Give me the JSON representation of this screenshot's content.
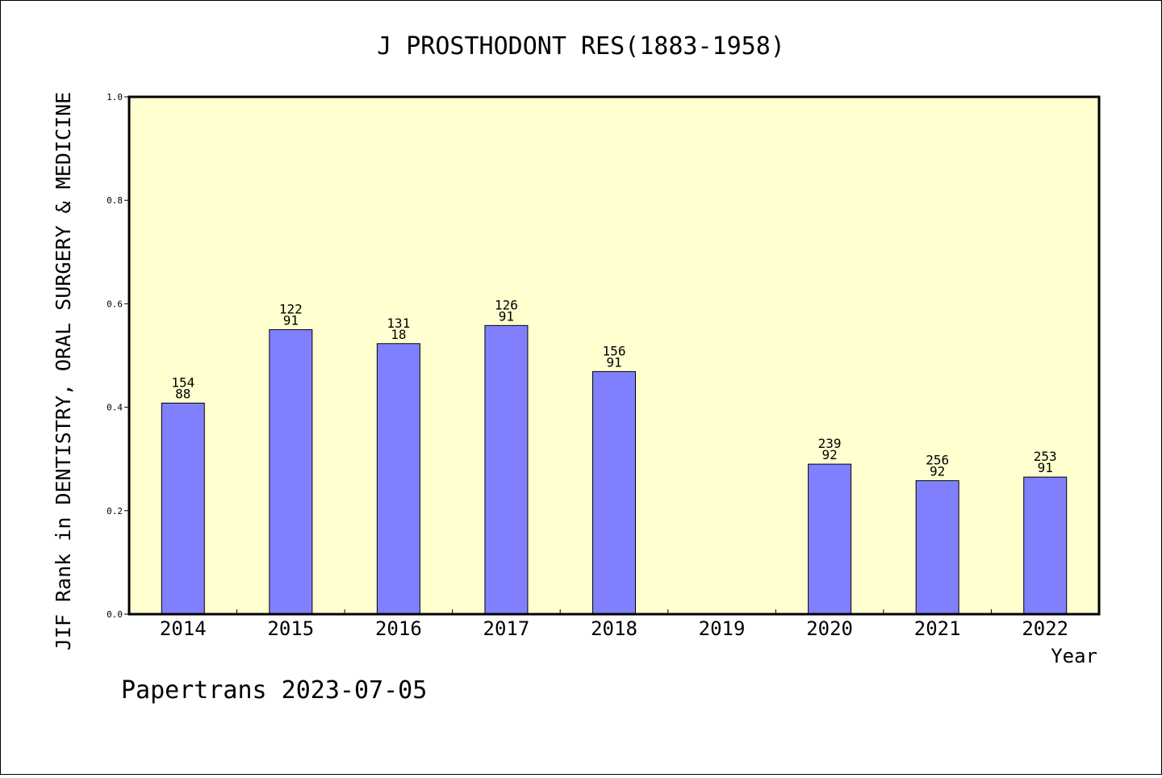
{
  "chart_data": {
    "type": "bar",
    "title": "J PROSTHODONT RES(1883-1958)",
    "xlabel": "Year",
    "ylabel": "JIF Rank in DENTISTRY, ORAL SURGERY & MEDICINE",
    "ylim": [
      0,
      1
    ],
    "yticks": [
      "0.0",
      "0.2",
      "0.4",
      "0.6",
      "0.8",
      "1.0"
    ],
    "categories": [
      "2014",
      "2015",
      "2016",
      "2017",
      "2018",
      "2019",
      "2020",
      "2021",
      "2022"
    ],
    "values": [
      0.408,
      0.55,
      0.523,
      0.558,
      0.469,
      null,
      0.29,
      0.258,
      0.265
    ],
    "bar_labels": [
      [
        "154",
        "88"
      ],
      [
        "122",
        "91"
      ],
      [
        "131",
        "18"
      ],
      [
        "126",
        "91"
      ],
      [
        "156",
        "91"
      ],
      null,
      [
        "239",
        "92"
      ],
      [
        "256",
        "92"
      ],
      [
        "253",
        "91"
      ]
    ],
    "grid": false,
    "bar_color": "#8080ff",
    "plot_background": "#ffffd0"
  },
  "footer": "Papertrans 2023-07-05"
}
